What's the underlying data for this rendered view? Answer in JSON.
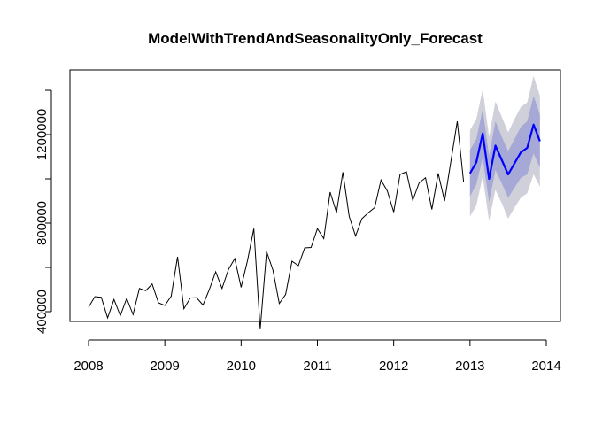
{
  "chart_data": {
    "type": "line",
    "title": "ModelWithTrendAndSeasonalityOnly_Forecast",
    "xlabel": "",
    "ylabel": "",
    "xlim": [
      2008,
      2014
    ],
    "ylim": [
      325000,
      1400000
    ],
    "x_ticks": [
      2008,
      2009,
      2010,
      2011,
      2012,
      2013,
      2014
    ],
    "y_ticks": [
      400000,
      800000,
      1200000
    ],
    "grid": false,
    "series": [
      {
        "name": "observed",
        "color": "#000000",
        "start": 2008,
        "frequency": 12,
        "values": [
          420000,
          468000,
          465000,
          372000,
          455000,
          382000,
          460000,
          387000,
          505000,
          495000,
          525000,
          440000,
          428000,
          470000,
          648000,
          413000,
          462000,
          463000,
          430000,
          500000,
          580000,
          505000,
          590000,
          640000,
          510000,
          630000,
          775000,
          320000,
          672000,
          588000,
          437000,
          478000,
          628000,
          608000,
          688000,
          690000,
          775000,
          730000,
          940000,
          848000,
          1030000,
          830000,
          742000,
          820000,
          847000,
          870000,
          995000,
          945000,
          850000,
          1020000,
          1032000,
          903000,
          982000,
          1005000,
          862000,
          1025000,
          900000,
          1080000,
          1260000,
          985000
        ]
      },
      {
        "name": "forecast",
        "color": "#0000ff",
        "start": 2013,
        "frequency": 12,
        "values": [
          1025000,
          1075000,
          1205000,
          1000000,
          1150000,
          1085000,
          1020000,
          1070000,
          1120000,
          1140000,
          1245000,
          1170000
        ],
        "interval_80_lower": [
          920000,
          975000,
          1095000,
          895000,
          1040000,
          980000,
          915000,
          960000,
          1005000,
          1020000,
          1115000,
          1050000
        ],
        "interval_80_upper": [
          1130000,
          1180000,
          1315000,
          1105000,
          1260000,
          1190000,
          1125000,
          1180000,
          1235000,
          1260000,
          1375000,
          1290000
        ],
        "interval_95_lower": [
          830000,
          880000,
          1010000,
          810000,
          950000,
          890000,
          820000,
          870000,
          915000,
          935000,
          1020000,
          965000
        ],
        "interval_95_upper": [
          1220000,
          1270000,
          1405000,
          1190000,
          1350000,
          1280000,
          1210000,
          1270000,
          1325000,
          1345000,
          1465000,
          1375000
        ],
        "interval_80_color": "#a6a8d6",
        "interval_95_color": "#d0d0da"
      }
    ]
  }
}
